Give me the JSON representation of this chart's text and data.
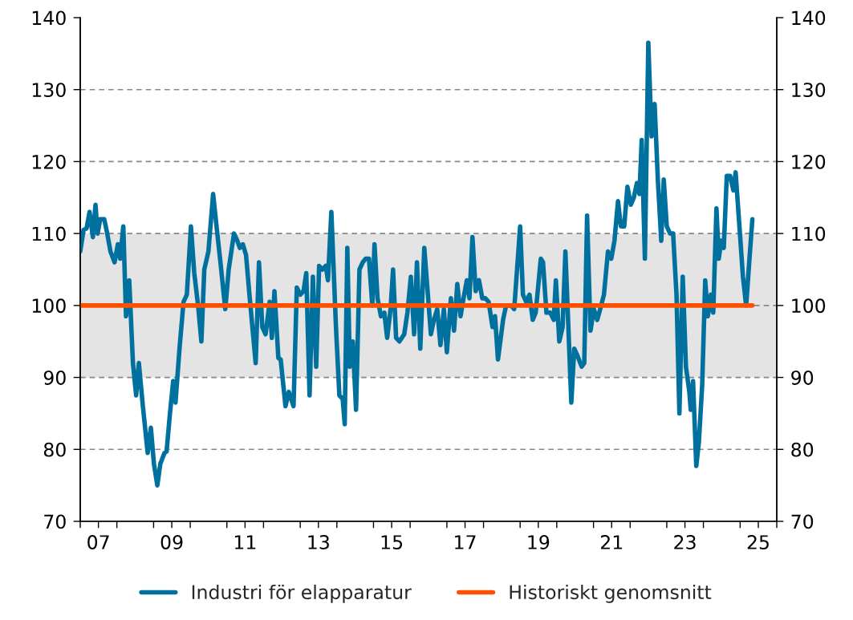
{
  "chart_data": {
    "type": "line",
    "xlim": [
      "2007-01-01",
      "2026-01-01"
    ],
    "xticks": [
      {
        "value": "2007-01-01",
        "label": null
      },
      {
        "value": "2007-07-01",
        "label": "07"
      },
      {
        "value": "2008-01-01",
        "label": null
      },
      {
        "value": "2009-01-01",
        "label": null
      },
      {
        "value": "2009-07-01",
        "label": "09"
      },
      {
        "value": "2010-01-01",
        "label": null
      },
      {
        "value": "2011-01-01",
        "label": null
      },
      {
        "value": "2011-07-01",
        "label": "11"
      },
      {
        "value": "2012-01-01",
        "label": null
      },
      {
        "value": "2013-01-01",
        "label": null
      },
      {
        "value": "2013-07-01",
        "label": "13"
      },
      {
        "value": "2014-01-01",
        "label": null
      },
      {
        "value": "2015-01-01",
        "label": null
      },
      {
        "value": "2015-07-01",
        "label": "15"
      },
      {
        "value": "2016-01-01",
        "label": null
      },
      {
        "value": "2017-01-01",
        "label": null
      },
      {
        "value": "2017-07-01",
        "label": "17"
      },
      {
        "value": "2018-01-01",
        "label": null
      },
      {
        "value": "2019-01-01",
        "label": null
      },
      {
        "value": "2019-07-01",
        "label": "19"
      },
      {
        "value": "2020-01-01",
        "label": null
      },
      {
        "value": "2021-01-01",
        "label": null
      },
      {
        "value": "2021-07-01",
        "label": "21"
      },
      {
        "value": "2022-01-01",
        "label": null
      },
      {
        "value": "2023-01-01",
        "label": null
      },
      {
        "value": "2023-07-01",
        "label": "23"
      },
      {
        "value": "2024-01-01",
        "label": null
      },
      {
        "value": "2025-01-01",
        "label": null
      },
      {
        "value": "2025-07-01",
        "label": "25"
      },
      {
        "value": "2026-01-01",
        "label": null
      }
    ],
    "ylim": [
      70,
      140
    ],
    "yticks": [
      70,
      80,
      90,
      100,
      110,
      120,
      130,
      140
    ],
    "y2lim": [
      70,
      140
    ],
    "y2ticks": [
      70,
      80,
      90,
      100,
      110,
      120,
      130,
      140
    ],
    "grid": "y",
    "legend": "bottom",
    "bands": [
      {
        "axis": "y",
        "from": 90,
        "to": 110,
        "color": "#e4e4e4"
      }
    ],
    "series": [
      {
        "name": "Industri för elapparatur",
        "color": "#00709e",
        "x": [
          "2007-01-01",
          "2007-02-03",
          "2007-03-05",
          "2007-04-04",
          "2007-05-07",
          "2007-06-02",
          "2007-06-23",
          "2007-07-19",
          "2007-08-28",
          "2007-09-27",
          "2007-10-29",
          "2007-12-09",
          "2008-01-11",
          "2008-02-03",
          "2008-03-05",
          "2008-04-01",
          "2008-05-03",
          "2008-06-09",
          "2008-07-11",
          "2008-08-07",
          "2008-09-16",
          "2008-11-03",
          "2008-12-05",
          "2009-01-04",
          "2009-02-07",
          "2009-03-09",
          "2009-04-19",
          "2009-05-10",
          "2009-06-13",
          "2009-07-15",
          "2009-08-07",
          "2009-09-16",
          "2009-10-26",
          "2009-11-28",
          "2010-01-08",
          "2010-02-10",
          "2010-03-20",
          "2010-04-22",
          "2010-05-21",
          "2010-07-01",
          "2010-08-17",
          "2010-09-20",
          "2010-10-29",
          "2010-12-16",
          "2011-01-19",
          "2011-03-13",
          "2011-04-15",
          "2011-05-10",
          "2011-06-09",
          "2011-07-11",
          "2011-08-14",
          "2011-10-15",
          "2011-11-17",
          "2011-12-20",
          "2012-01-22",
          "2012-03-02",
          "2012-03-24",
          "2012-04-19",
          "2012-05-28",
          "2012-06-20",
          "2012-08-07",
          "2012-09-09",
          "2012-10-26",
          "2012-11-28",
          "2013-01-01",
          "2013-02-03",
          "2013-03-02",
          "2013-04-04",
          "2013-05-07",
          "2013-06-09",
          "2013-07-08",
          "2013-08-10",
          "2013-09-13",
          "2013-10-04",
          "2013-11-07",
          "2013-12-23",
          "2014-01-26",
          "2014-02-28",
          "2014-03-20",
          "2014-04-15",
          "2014-05-10",
          "2014-06-09",
          "2014-07-11",
          "2014-08-14",
          "2014-09-16",
          "2014-10-15",
          "2014-11-17",
          "2014-12-20",
          "2015-01-11",
          "2015-02-10",
          "2015-03-16",
          "2015-04-19",
          "2015-05-17",
          "2015-06-20",
          "2015-07-15",
          "2015-08-14",
          "2015-09-16",
          "2015-11-03",
          "2015-12-05",
          "2016-01-08",
          "2016-02-10",
          "2016-03-09",
          "2016-04-11",
          "2016-05-21",
          "2016-07-26",
          "2016-08-25",
          "2016-09-27",
          "2016-10-29",
          "2016-12-02",
          "2017-01-01",
          "2017-02-10",
          "2017-03-13",
          "2017-04-15",
          "2017-05-17",
          "2017-06-16",
          "2017-07-19",
          "2017-08-14",
          "2017-09-13",
          "2017-10-15",
          "2017-11-17",
          "2017-12-20",
          "2018-01-19",
          "2018-02-21",
          "2018-04-01",
          "2018-04-26",
          "2018-05-25",
          "2018-07-15",
          "2018-08-14",
          "2018-10-04",
          "2018-11-03",
          "2019-01-01",
          "2019-01-29",
          "2019-03-02",
          "2019-04-04",
          "2019-05-07",
          "2019-06-05",
          "2019-07-26",
          "2019-08-17",
          "2019-09-20",
          "2019-10-29",
          "2019-12-02",
          "2019-12-23",
          "2020-01-26",
          "2020-02-28",
          "2020-03-27",
          "2020-05-25",
          "2020-06-23",
          "2020-07-26",
          "2020-09-05",
          "2020-10-01",
          "2020-10-29",
          "2020-12-02",
          "2021-01-04",
          "2021-02-07",
          "2021-03-09",
          "2021-04-15",
          "2021-05-25",
          "2021-06-27",
          "2021-07-29",
          "2021-09-02",
          "2021-10-01",
          "2021-11-03",
          "2021-12-05",
          "2022-01-08",
          "2022-02-07",
          "2022-03-09",
          "2022-04-04",
          "2022-04-26",
          "2022-05-28",
          "2022-07-01",
          "2022-08-03",
          "2022-09-02",
          "2022-10-04",
          "2022-11-07",
          "2022-12-02",
          "2023-01-01",
          "2023-02-03",
          "2023-03-05",
          "2023-04-08",
          "2023-05-07",
          "2023-06-09",
          "2023-07-11",
          "2023-08-14",
          "2023-08-28",
          "2023-09-20",
          "2023-10-22",
          "2023-11-17",
          "2023-12-20",
          "2024-01-19",
          "2024-02-14",
          "2024-03-16",
          "2024-04-08",
          "2024-05-10",
          "2024-06-02",
          "2024-06-27",
          "2024-07-22",
          "2024-08-21",
          "2024-09-23",
          "2024-10-26",
          "2024-11-17",
          "2024-12-20",
          "2025-01-29",
          "2025-03-02",
          "2025-04-04",
          "2025-05-03"
        ],
        "values": [
          107.5,
          110.5,
          110.7,
          113,
          109.5,
          114,
          110,
          112,
          112,
          110,
          107.5,
          106,
          108.5,
          106.5,
          111,
          98.5,
          103.5,
          92,
          87.5,
          92,
          86,
          79.5,
          83,
          78,
          75,
          78,
          79.5,
          79.7,
          85,
          89.5,
          86.5,
          94,
          100.5,
          101.5,
          111,
          104.5,
          100,
          95,
          105,
          107.5,
          115.5,
          111,
          106,
          99.5,
          105,
          110,
          109,
          108,
          108.5,
          107,
          101.5,
          92,
          106,
          97,
          96,
          100.5,
          95.5,
          102,
          92.7,
          92.5,
          86,
          88,
          86,
          102.5,
          101.5,
          102,
          104.5,
          87.5,
          104,
          91.5,
          105.5,
          105,
          105.5,
          103.5,
          113,
          97,
          87.5,
          87,
          83.5,
          108,
          91.5,
          95,
          85.5,
          105,
          106,
          106.5,
          106.5,
          100,
          108.5,
          101,
          98.5,
          99,
          95.5,
          99.5,
          105,
          95.5,
          95,
          96,
          99,
          104,
          96,
          106,
          94,
          108,
          96,
          98,
          99.5,
          94.5,
          99.5,
          93.5,
          101,
          96.5,
          103,
          98.5,
          101,
          103.5,
          101,
          109.5,
          102,
          103.5,
          101,
          101,
          100.5,
          97,
          98.5,
          92.5,
          98,
          100,
          100,
          99.5,
          111,
          101.5,
          100.5,
          101.5,
          98,
          99,
          106.5,
          106,
          99,
          99,
          98,
          103.5,
          95,
          97,
          107.5,
          86.5,
          94,
          93,
          91.5,
          92,
          112.5,
          96.5,
          99.5,
          98,
          99.5,
          101.5,
          107.5,
          106.5,
          109,
          114.5,
          111,
          111,
          116.5,
          114,
          115,
          117,
          115.5,
          123,
          106.5,
          136.5,
          123.5,
          128,
          117.5,
          109,
          117.5,
          111,
          110,
          110,
          101.5,
          85,
          104,
          91.5,
          88,
          85.5,
          89.5,
          77.7,
          81,
          89,
          103.5,
          98.5,
          101.5,
          99,
          113.5,
          106.5,
          109,
          108,
          118,
          118,
          116,
          118.5,
          112,
          104,
          100,
          106.5,
          112
        ]
      },
      {
        "name": "Historiskt genomsnitt",
        "color": "#ff5000",
        "x": [
          "2007-01-01",
          "2025-05-03"
        ],
        "values": [
          100,
          100
        ]
      }
    ]
  }
}
